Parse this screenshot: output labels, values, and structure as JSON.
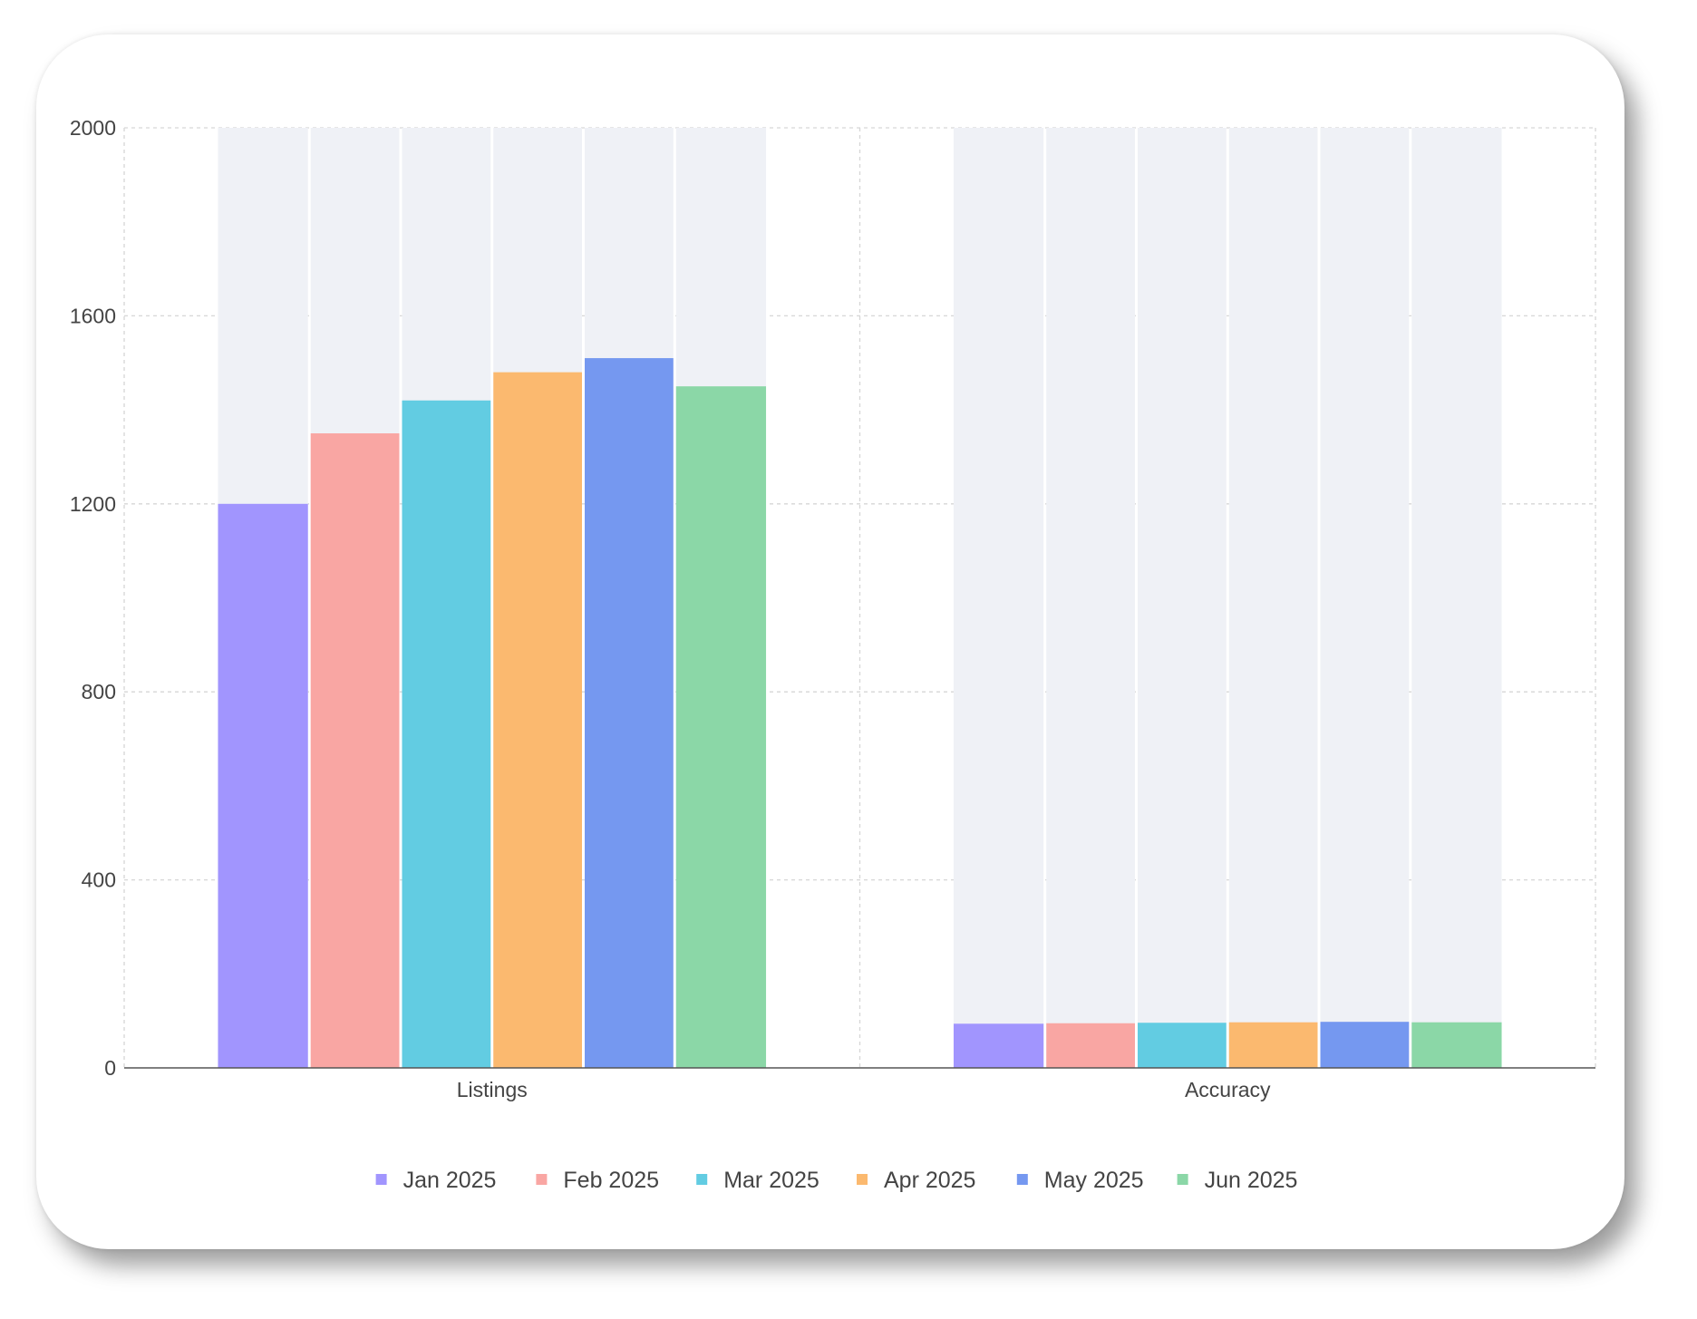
{
  "chart_data": {
    "type": "bar",
    "categories": [
      "Listings",
      "Accuracy"
    ],
    "series": [
      {
        "name": "Jan 2025",
        "color": "#a195fe",
        "values": [
          1200,
          94
        ]
      },
      {
        "name": "Feb 2025",
        "color": "#f9a6a3",
        "values": [
          1350,
          95
        ]
      },
      {
        "name": "Mar 2025",
        "color": "#62cce2",
        "values": [
          1420,
          96
        ]
      },
      {
        "name": "Apr 2025",
        "color": "#fbb96f",
        "values": [
          1480,
          97
        ]
      },
      {
        "name": "May 2025",
        "color": "#7598f0",
        "values": [
          1510,
          98
        ]
      },
      {
        "name": "Jun 2025",
        "color": "#8bd7a7",
        "values": [
          1450,
          97
        ]
      }
    ],
    "yticks": [
      0,
      400,
      800,
      1200,
      1600,
      2000
    ],
    "ylim": [
      0,
      2000
    ],
    "grid": true,
    "legend": "bottom",
    "background_bar_color": "#eff1f6"
  }
}
